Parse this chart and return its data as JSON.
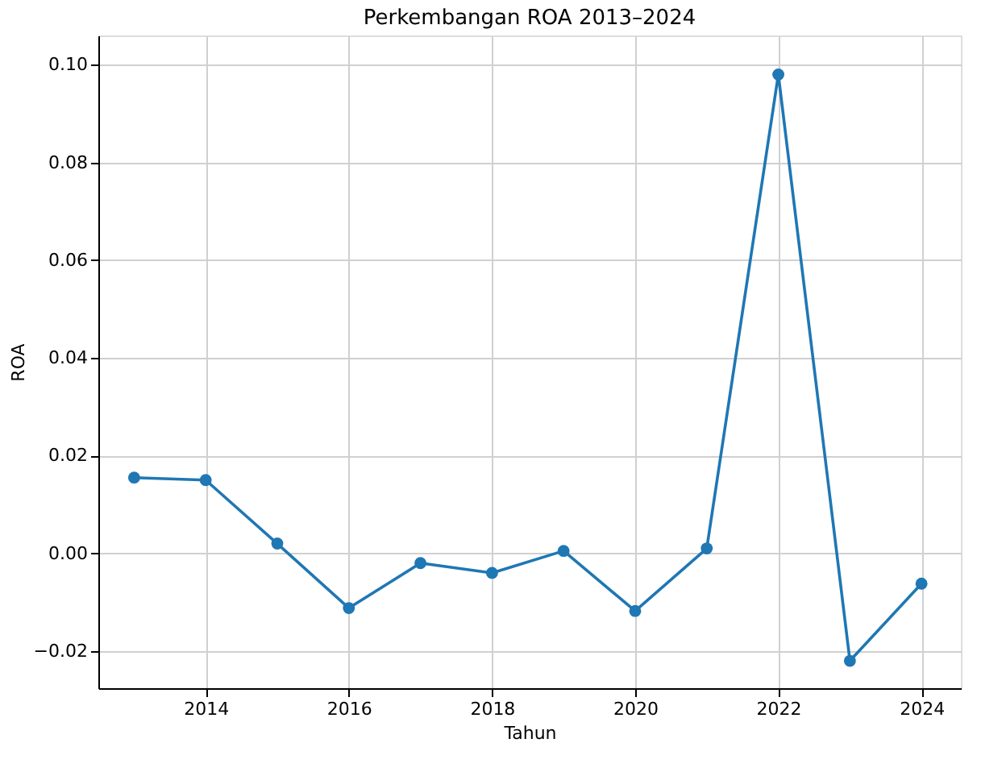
{
  "chart_data": {
    "type": "line",
    "title": "Perkembangan ROA 2013–2024",
    "xlabel": "Tahun",
    "ylabel": "ROA",
    "x": [
      2013,
      2014,
      2015,
      2016,
      2017,
      2018,
      2019,
      2020,
      2021,
      2022,
      2023,
      2024
    ],
    "series": [
      {
        "color": "#1f77b4",
        "values": [
          0.0155,
          0.015,
          0.002,
          -0.0112,
          -0.002,
          -0.004,
          0.0005,
          -0.0118,
          0.001,
          0.098,
          -0.022,
          -0.0062
        ]
      }
    ],
    "xlim": [
      2012.5,
      2024.55
    ],
    "xticks": [
      2014,
      2016,
      2018,
      2020,
      2022,
      2024
    ],
    "ylim": [
      -0.0276,
      0.106
    ],
    "yticks": [
      {
        "value": -0.02,
        "label": "−0.02"
      },
      {
        "value": 0,
        "label": "0.00"
      },
      {
        "value": 0.02,
        "label": "0.02"
      },
      {
        "value": 0.04,
        "label": "0.04"
      },
      {
        "value": 0.06,
        "label": "0.06"
      },
      {
        "value": 0.08,
        "label": "0.08"
      },
      {
        "value": 0.1,
        "label": "0.10"
      }
    ],
    "grid": true,
    "marker": "circle",
    "line_style": "solid"
  }
}
